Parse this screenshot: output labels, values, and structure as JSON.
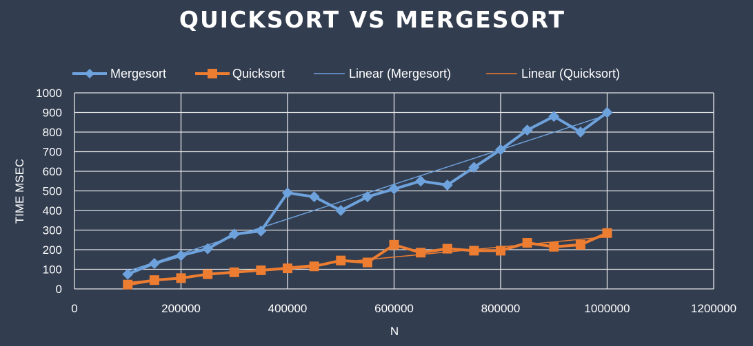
{
  "chart_data": {
    "type": "line",
    "title": "QUICKSORT VS MERGESORT",
    "xlabel": "N",
    "ylabel": "TIME MSEC",
    "xlim": [
      0,
      1200000
    ],
    "ylim": [
      0,
      1000
    ],
    "x_ticks": [
      0,
      200000,
      400000,
      600000,
      800000,
      1000000,
      1200000
    ],
    "y_ticks": [
      0,
      100,
      200,
      300,
      400,
      500,
      600,
      700,
      800,
      900,
      1000
    ],
    "x_tick_labels": [
      "0",
      "200000",
      "400000",
      "600000",
      "800000",
      "1000000",
      "1200000"
    ],
    "y_tick_labels": [
      "0",
      "100",
      "200",
      "300",
      "400",
      "500",
      "600",
      "700",
      "800",
      "900",
      "1000"
    ],
    "grid": true,
    "legend_position": "top",
    "x": [
      100000,
      150000,
      200000,
      250000,
      300000,
      350000,
      400000,
      450000,
      500000,
      550000,
      600000,
      650000,
      700000,
      750000,
      800000,
      850000,
      900000,
      950000,
      1000000
    ],
    "series": [
      {
        "name": "Mergesort",
        "color": "#6ea2dc",
        "marker": "diamond",
        "values": [
          75,
          130,
          170,
          205,
          280,
          295,
          490,
          470,
          400,
          470,
          510,
          550,
          530,
          620,
          710,
          810,
          880,
          800,
          900
        ]
      },
      {
        "name": "Quicksort",
        "color": "#ed7d31",
        "marker": "square",
        "values": [
          22,
          45,
          55,
          75,
          85,
          95,
          105,
          115,
          145,
          135,
          225,
          185,
          205,
          195,
          195,
          235,
          215,
          225,
          285
        ]
      }
    ],
    "trendlines": [
      {
        "name": "Linear (Mergesort)",
        "color": "#6ea2dc",
        "of": "Mergesort"
      },
      {
        "name": "Linear (Quicksort)",
        "color": "#ed7d31",
        "of": "Quicksort"
      }
    ]
  }
}
